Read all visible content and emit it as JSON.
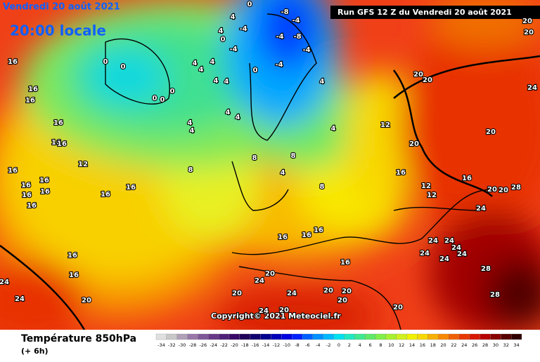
{
  "map": {
    "title_date": "Vendredi 20 août 2021",
    "title_time": "20:00 locale",
    "run": "Run GFS 12 Z du Vendredi 20 août 2021",
    "copyright": "Copyright© 2021 Meteociel.fr",
    "contour_labels": [
      16,
      16,
      16,
      16,
      16,
      16,
      16,
      16,
      16,
      16,
      16,
      16,
      16,
      16,
      12,
      16,
      16,
      24,
      24,
      20,
      0,
      0,
      0,
      0,
      0,
      4,
      0,
      -4,
      4,
      -4,
      0,
      0,
      -8,
      -4,
      -8,
      -4,
      -4,
      -4,
      4,
      4,
      4,
      4,
      4,
      4,
      4,
      4,
      4,
      8,
      8,
      4,
      8,
      4,
      4,
      8,
      12,
      16,
      12,
      12,
      16,
      20,
      20,
      28,
      24,
      20,
      20,
      20,
      20,
      24,
      20,
      20,
      24,
      24,
      24,
      24,
      24,
      24,
      28,
      28,
      16,
      20,
      20,
      20,
      24,
      20,
      24,
      20,
      24,
      20,
      20,
      16,
      16,
      16
    ]
  },
  "legend": {
    "title": "Température 850hPa",
    "lead": "(+ 6h)",
    "scale": {
      "values": [
        -34,
        -32,
        -30,
        -28,
        -26,
        -24,
        -22,
        -20,
        -18,
        -16,
        -14,
        -12,
        -10,
        -8,
        -6,
        -4,
        -2,
        0,
        2,
        4,
        6,
        8,
        10,
        12,
        14,
        16,
        18,
        20,
        22,
        24,
        26,
        28,
        30,
        32,
        34
      ],
      "colors": [
        "#e0e0e0",
        "#c8c8c8",
        "#b0a0b8",
        "#9878a8",
        "#805898",
        "#683888",
        "#502078",
        "#380868",
        "#200058",
        "#100070",
        "#000090",
        "#0000b8",
        "#0000e0",
        "#0020ff",
        "#0060ff",
        "#0090ff",
        "#00b8ff",
        "#00e0f0",
        "#20e8c0",
        "#40e890",
        "#60e868",
        "#80f048",
        "#a8f030",
        "#d0f020",
        "#f0f000",
        "#f8d800",
        "#f8b000",
        "#f88800",
        "#f06000",
        "#e83800",
        "#d81800",
        "#b80000",
        "#880000",
        "#580000",
        "#300000"
      ]
    }
  }
}
